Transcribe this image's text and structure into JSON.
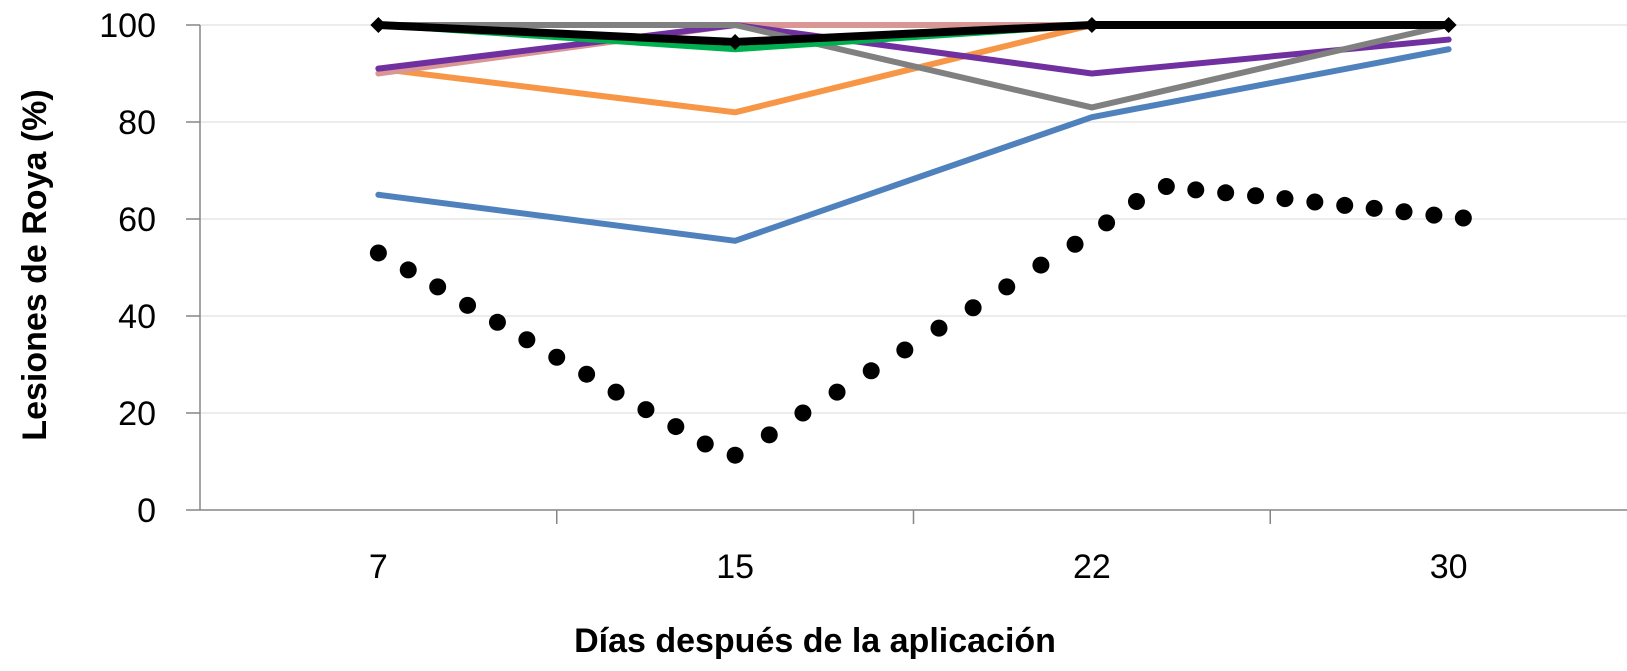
{
  "chart_data": {
    "type": "line",
    "title": "",
    "xlabel": "Días después de la aplicación",
    "ylabel": "Lesiones de Roya (%)",
    "categories": [
      "7",
      "15",
      "22",
      "30"
    ],
    "ylim": [
      0,
      100
    ],
    "yticks": [
      "0",
      "20",
      "40",
      "60",
      "80",
      "100"
    ],
    "grid": true,
    "legend": "none",
    "series": [
      {
        "color": "#4f81bd",
        "style": "solid",
        "values": [
          65,
          55.5,
          81,
          95
        ]
      },
      {
        "color": "#f79646",
        "style": "solid",
        "values": [
          91,
          82,
          100,
          100
        ]
      },
      {
        "color": "#d99694",
        "style": "solid",
        "values": [
          90,
          100,
          100,
          100
        ]
      },
      {
        "color": "#7030a0",
        "style": "solid",
        "values": [
          91,
          100,
          90,
          97
        ]
      },
      {
        "color": "#808080",
        "style": "solid",
        "values": [
          100,
          100,
          83,
          100
        ]
      },
      {
        "color": "#00b050",
        "style": "solid",
        "values": [
          100,
          95,
          100,
          100
        ]
      },
      {
        "color": "#000000",
        "style": "solid-diamond",
        "values": [
          100,
          96.5,
          100,
          100
        ]
      }
    ],
    "trendline": {
      "color": "#000000",
      "style": "dotted",
      "x": [
        7,
        7.67,
        8.33,
        9,
        9.67,
        10.33,
        11,
        11.67,
        12.33,
        13,
        13.67,
        14.33,
        15,
        15.67,
        16.33,
        17,
        17.67,
        18.33,
        19,
        19.67,
        20.33,
        21,
        21.67,
        22.33,
        23,
        23.67,
        24.33,
        25,
        25.67,
        26.33,
        27,
        27.67,
        28.33,
        29,
        29.67,
        30.33
      ],
      "values": [
        53,
        49.5,
        46,
        42.2,
        38.7,
        35.1,
        31.5,
        28,
        24.3,
        20.7,
        17.2,
        13.6,
        11.3,
        15.5,
        20,
        24.3,
        28.7,
        33,
        37.5,
        41.7,
        46,
        50.5,
        54.8,
        59.2,
        63.6,
        66.7,
        66,
        65.4,
        64.8,
        64.2,
        63.5,
        62.8,
        62.2,
        61.5,
        60.8,
        60.2
      ]
    }
  }
}
